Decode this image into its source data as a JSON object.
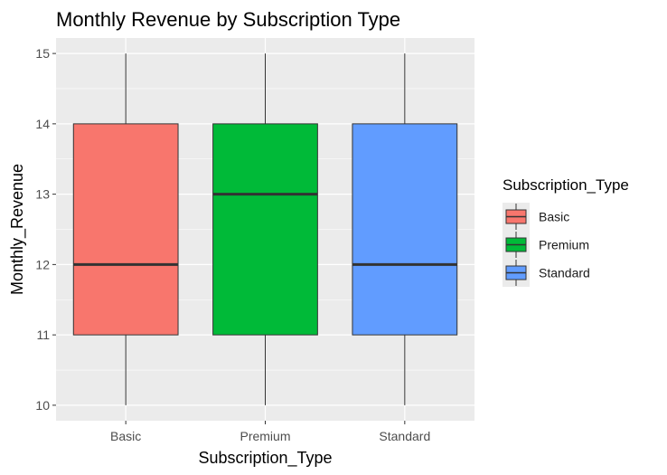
{
  "chart_data": {
    "type": "boxplot",
    "title": "Monthly Revenue by Subscription Type",
    "xlabel": "Subscription_Type",
    "ylabel": "Monthly_Revenue",
    "ylim": [
      9.78,
      15.22
    ],
    "yticks": [
      10,
      11,
      12,
      13,
      14,
      15
    ],
    "categories": [
      "Basic",
      "Premium",
      "Standard"
    ],
    "boxes": [
      {
        "category": "Basic",
        "min": 10,
        "q1": 11,
        "median": 12,
        "q3": 14,
        "max": 15,
        "color": "#F8766D"
      },
      {
        "category": "Premium",
        "min": 10,
        "q1": 11,
        "median": 13,
        "q3": 14,
        "max": 15,
        "color": "#00BA38"
      },
      {
        "category": "Standard",
        "min": 10,
        "q1": 11,
        "median": 12,
        "q3": 14,
        "max": 15,
        "color": "#619CFF"
      }
    ],
    "grid": true,
    "legend": {
      "title": "Subscription_Type",
      "position": "right",
      "items": [
        "Basic",
        "Premium",
        "Standard"
      ]
    },
    "panel_background": "#EBEBEB",
    "grid_color": "#FFFFFF"
  }
}
